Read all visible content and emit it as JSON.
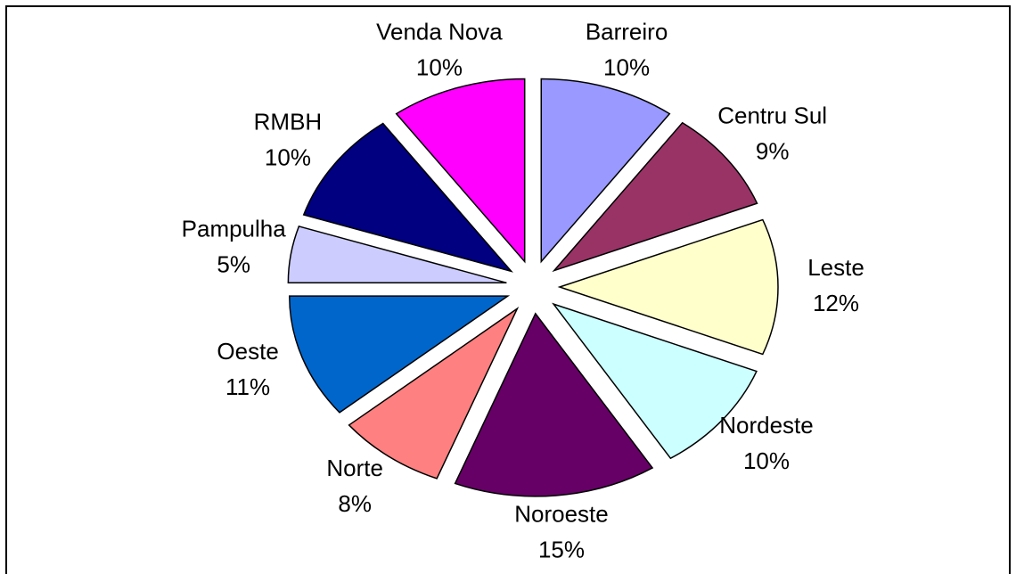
{
  "chart_data": {
    "type": "pie",
    "categories": [
      "Barreiro",
      "Centru Sul",
      "Leste",
      "Nordeste",
      "Noroeste",
      "Norte",
      "Oeste",
      "Pampulha",
      "RMBH",
      "Venda Nova"
    ],
    "values": [
      10,
      9,
      12,
      10,
      15,
      8,
      11,
      5,
      10,
      10
    ],
    "value_labels": [
      "10%",
      "9%",
      "12%",
      "10%",
      "15%",
      "8%",
      "11%",
      "5%",
      "10%",
      "10%"
    ],
    "colors": [
      "#9999ff",
      "#993366",
      "#ffffcc",
      "#ccffff",
      "#660066",
      "#ff8080",
      "#0066cc",
      "#ccccff",
      "#000080",
      "#ff00ff"
    ]
  }
}
